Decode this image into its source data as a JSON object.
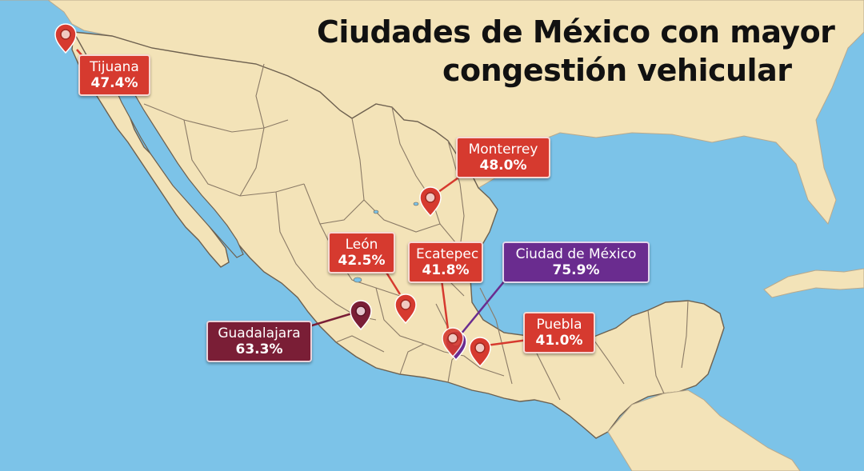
{
  "title": {
    "line1": "Ciudades de México con mayor",
    "line2": "congestión vehicular"
  },
  "colors": {
    "ocean": "#7cc3e8",
    "land": "#f3e3b8",
    "border": "#8a7a66",
    "marker_red": "#d63a2f",
    "marker_purple": "#6a2c8f",
    "marker_maroon": "#7a1e36"
  },
  "marker_icon": "map-pin-icon",
  "cities": [
    {
      "id": "tijuana",
      "name": "Tijuana",
      "value": "47.4%",
      "color": "red"
    },
    {
      "id": "monterrey",
      "name": "Monterrey",
      "value": "48.0%",
      "color": "red"
    },
    {
      "id": "leon",
      "name": "León",
      "value": "42.5%",
      "color": "red"
    },
    {
      "id": "ecatepec",
      "name": "Ecatepec",
      "value": "41.8%",
      "color": "red"
    },
    {
      "id": "cdmx",
      "name": "Ciudad de México",
      "value": "75.9%",
      "color": "purple"
    },
    {
      "id": "puebla",
      "name": "Puebla",
      "value": "41.0%",
      "color": "red"
    },
    {
      "id": "guadalajara",
      "name": "Guadalajara",
      "value": "63.3%",
      "color": "maroon"
    }
  ]
}
